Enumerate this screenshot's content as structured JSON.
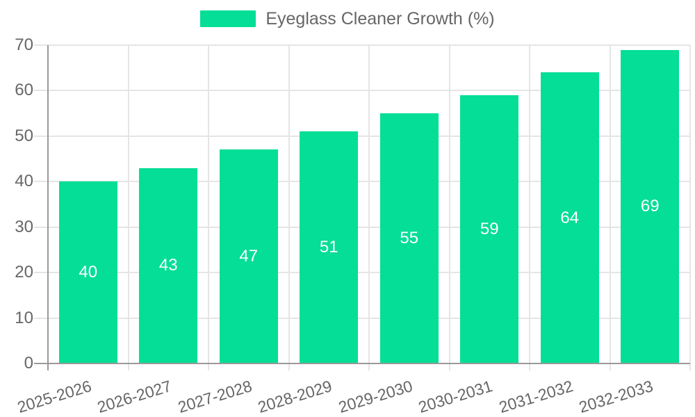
{
  "legend": {
    "label": "Eyeglass Cleaner Growth (%)"
  },
  "chart_data": {
    "type": "bar",
    "title": "",
    "series_label": "Eyeglass Cleaner Growth (%)",
    "categories": [
      "2025-2026",
      "2026-2027",
      "2027-2028",
      "2028-2029",
      "2029-2030",
      "2030-2031",
      "2031-2032",
      "2032-2033"
    ],
    "values": [
      40,
      43,
      47,
      51,
      55,
      59,
      64,
      69
    ],
    "value_labels": [
      "40",
      "43",
      "47",
      "51",
      "55",
      "59",
      "64",
      "69"
    ],
    "xlabel": "",
    "ylabel": "",
    "ylim": [
      0,
      70
    ],
    "yticks": [
      0,
      10,
      20,
      30,
      40,
      50,
      60,
      70
    ],
    "grid": true,
    "legend_position": "top-center",
    "colors": {
      "bar": "#05DE96",
      "axis_text": "#666666",
      "grid_line": "#e5e5e5",
      "axis_line": "#999999",
      "value_label": "#ffffff",
      "background": "#ffffff"
    }
  }
}
